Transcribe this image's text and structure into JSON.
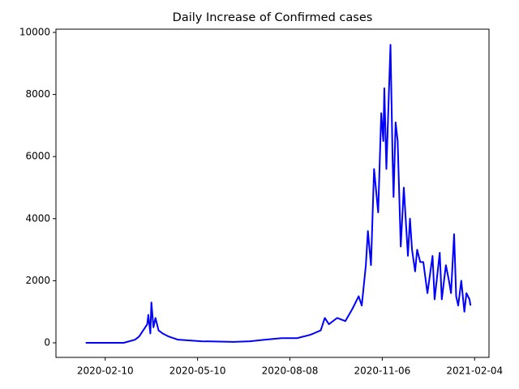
{
  "chart_data": {
    "type": "line",
    "title": "Daily Increase of Confirmed cases",
    "x": [
      "2020-01-22",
      "2020-02-28",
      "2020-03-10",
      "2020-03-14",
      "2020-03-18",
      "2020-03-22",
      "2020-03-23",
      "2020-03-25",
      "2020-03-26",
      "2020-03-28",
      "2020-03-30",
      "2020-04-02",
      "2020-04-06",
      "2020-04-12",
      "2020-04-21",
      "2020-05-14",
      "2020-06-14",
      "2020-06-30",
      "2020-07-15",
      "2020-07-31",
      "2020-08-15",
      "2020-08-27",
      "2020-08-31",
      "2020-09-07",
      "2020-09-11",
      "2020-09-15",
      "2020-09-23",
      "2020-10-01",
      "2020-10-08",
      "2020-10-14",
      "2020-10-17",
      "2020-10-21",
      "2020-10-23",
      "2020-10-26",
      "2020-10-29",
      "2020-11-02",
      "2020-11-05",
      "2020-11-07",
      "2020-11-08",
      "2020-11-10",
      "2020-11-14",
      "2020-11-16",
      "2020-11-17",
      "2020-11-19",
      "2020-11-21",
      "2020-11-24",
      "2020-11-27",
      "2020-12-01",
      "2020-12-03",
      "2020-12-05",
      "2020-12-08",
      "2020-12-10",
      "2020-12-13",
      "2020-12-16",
      "2020-12-20",
      "2020-12-25",
      "2020-12-27",
      "2021-01-01",
      "2021-01-03",
      "2021-01-07",
      "2021-01-10",
      "2021-01-12",
      "2021-01-15",
      "2021-01-17",
      "2021-01-19",
      "2021-01-22",
      "2021-01-25",
      "2021-01-27",
      "2021-01-30",
      "2021-01-31"
    ],
    "series": [
      {
        "color": "#0000ff",
        "values": [
          0,
          0,
          100,
          200,
          400,
          600,
          900,
          300,
          1300,
          500,
          800,
          400,
          300,
          200,
          100,
          50,
          30,
          50,
          100,
          150,
          150,
          250,
          300,
          400,
          800,
          600,
          800,
          700,
          1100,
          1500,
          1200,
          2500,
          3600,
          2500,
          5600,
          4200,
          7400,
          6500,
          8200,
          5600,
          9600,
          6000,
          4700,
          7100,
          6500,
          3100,
          5000,
          2800,
          4000,
          3000,
          2300,
          3000,
          2600,
          2600,
          1600,
          2800,
          1400,
          2900,
          1400,
          2500,
          2000,
          1600,
          3500,
          1500,
          1200,
          2000,
          1000,
          1600,
          1400,
          1200
        ]
      }
    ],
    "xlim": [
      "2019-12-24",
      "2021-02-18"
    ],
    "xticks": [
      "2020-02-10",
      "2020-05-10",
      "2020-08-08",
      "2020-11-06",
      "2021-02-04"
    ],
    "ylim": [
      -470,
      10104
    ],
    "yticks": [
      0,
      2000,
      4000,
      6000,
      8000,
      10000
    ]
  }
}
